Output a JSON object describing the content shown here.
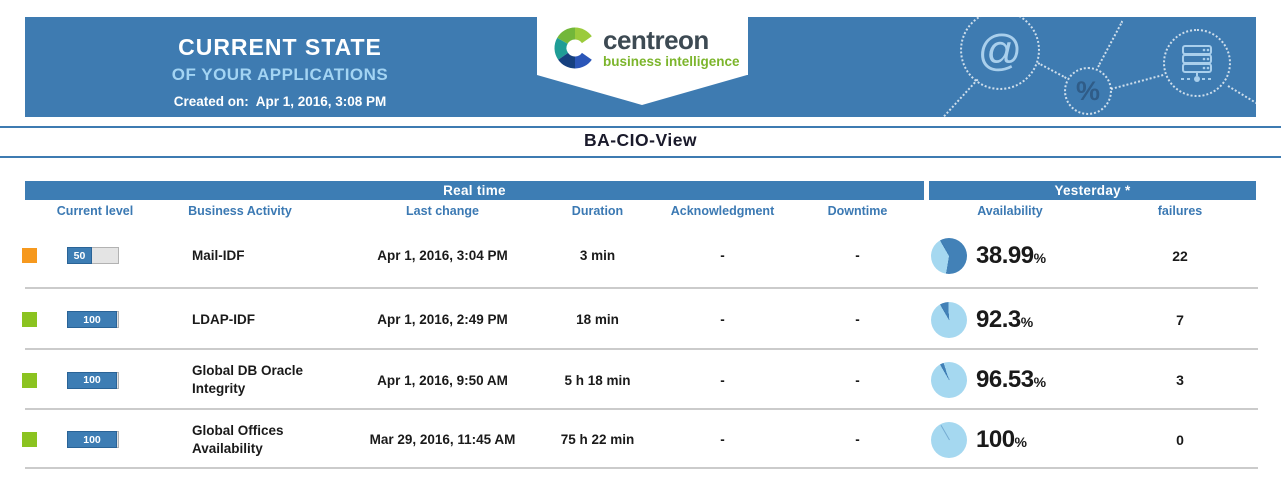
{
  "banner": {
    "title": "CURRENT STATE",
    "subtitle": "OF YOUR APPLICATIONS",
    "created_label": "Created on:",
    "created_value": "Apr 1, 2016, 3:08 PM",
    "logo": {
      "name": "centreon",
      "tagline": "business intelligence"
    },
    "decor": {
      "at_glyph": "@",
      "percent_glyph": "%",
      "server_icon": "server-icon"
    },
    "colors": {
      "banner_blue": "#3e7bb1",
      "subtitle_blue": "#a3d4f3",
      "logo_tag_green": "#7cb52c"
    }
  },
  "report": {
    "view_title": "BA-CIO-View"
  },
  "table": {
    "sections": {
      "realtime": "Real time",
      "yesterday": "Yesterday *"
    },
    "columns": {
      "current_level": "Current level",
      "business_activity": "Business Activity",
      "last_change": "Last change",
      "duration": "Duration",
      "acknowledgment": "Acknowledgment",
      "downtime": "Downtime",
      "availability": "Availability",
      "failures": "failures"
    },
    "pie_colors": {
      "available": "#a5d8f0",
      "unavailable": "#4281b7"
    },
    "rows": [
      {
        "status": "warning",
        "status_color": "#f6991e",
        "level_value": 50,
        "level_label": "50",
        "name": "Mail-IDF",
        "last_change": "Apr 1, 2016, 3:04 PM",
        "duration": "3 min",
        "acknowledgment": "-",
        "downtime": "-",
        "availability_value": 38.99,
        "availability_label": "38.99",
        "availability_unit": "%",
        "failures": "22"
      },
      {
        "status": "ok",
        "status_color": "#8bc320",
        "level_value": 100,
        "level_label": "100",
        "name": "LDAP-IDF",
        "last_change": "Apr 1, 2016, 2:49 PM",
        "duration": "18 min",
        "acknowledgment": "-",
        "downtime": "-",
        "availability_value": 92.3,
        "availability_label": "92.3",
        "availability_unit": "%",
        "failures": "7"
      },
      {
        "status": "ok",
        "status_color": "#8bc320",
        "level_value": 100,
        "level_label": "100",
        "name": "Global DB Oracle Integrity",
        "last_change": "Apr 1, 2016, 9:50 AM",
        "duration": "5 h 18 min",
        "acknowledgment": "-",
        "downtime": "-",
        "availability_value": 96.53,
        "availability_label": "96.53",
        "availability_unit": "%",
        "failures": "3"
      },
      {
        "status": "ok",
        "status_color": "#8bc320",
        "level_value": 100,
        "level_label": "100",
        "name": "Global Offices Availability",
        "last_change": "Mar 29, 2016, 11:45 AM",
        "duration": "75 h 22 min",
        "acknowledgment": "-",
        "downtime": "-",
        "availability_value": 100,
        "availability_label": "100",
        "availability_unit": "%",
        "failures": "0"
      }
    ]
  }
}
